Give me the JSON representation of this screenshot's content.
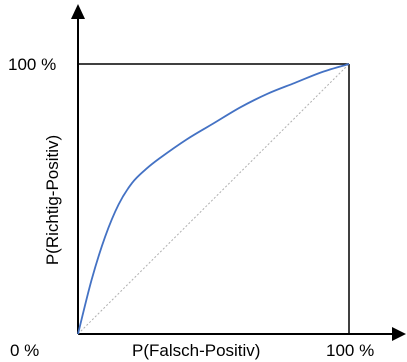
{
  "chart_data": {
    "type": "line",
    "xlabel": "P(Falsch-Positiv)",
    "ylabel": "P(Richtig-Positiv)",
    "xlim": [
      0,
      100
    ],
    "ylim": [
      0,
      100
    ],
    "x_tick_labels": [
      "0 %",
      "100 %"
    ],
    "y_tick_labels": [
      "100 %"
    ],
    "grid": false,
    "series": [
      {
        "color": "#4472c4",
        "points": [
          [
            0,
            0
          ],
          [
            5,
            20
          ],
          [
            10,
            36
          ],
          [
            15,
            48
          ],
          [
            20,
            56
          ],
          [
            25,
            61
          ],
          [
            30,
            65
          ],
          [
            40,
            72
          ],
          [
            50,
            78
          ],
          [
            60,
            84
          ],
          [
            70,
            89
          ],
          [
            80,
            93
          ],
          [
            90,
            97
          ],
          [
            100,
            100
          ]
        ]
      },
      {
        "style": "dotted",
        "color": "#b0b0b0",
        "points": [
          [
            0,
            0
          ],
          [
            100,
            100
          ]
        ]
      }
    ]
  }
}
